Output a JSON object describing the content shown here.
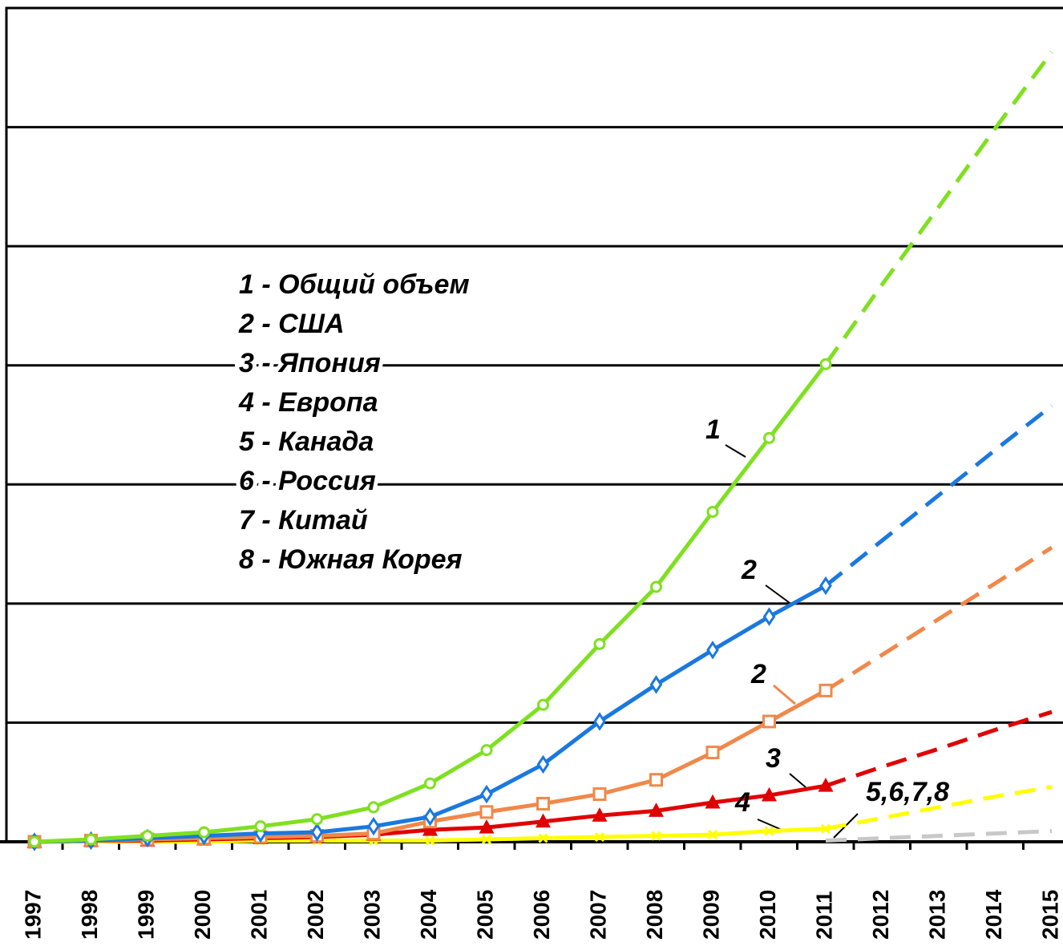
{
  "chart_data": {
    "type": "line",
    "categories": [
      "1997",
      "1998",
      "1999",
      "2000",
      "2001",
      "2002",
      "2003",
      "2004",
      "2005",
      "2006",
      "2007",
      "2008",
      "2009",
      "2010",
      "2011",
      "2012",
      "2013",
      "2014",
      "2015"
    ],
    "forecast_from": "2011",
    "ylim": [
      0,
      7
    ],
    "yticks": [
      1,
      2,
      3,
      4,
      5,
      6,
      7
    ],
    "grid": true,
    "legend": [
      "1 - Общий объем",
      "2 - США",
      "3 - Япония",
      "4 - Европа",
      "5 - Канада",
      "6 - Россия",
      "7 - Китай",
      "8 - Южная Корея"
    ],
    "annotations": [
      "1",
      "2",
      "2",
      "3",
      "4",
      "5,6,7,8"
    ],
    "series": [
      {
        "color": "#c8c8c8",
        "marker": "none",
        "values": [
          null,
          null,
          null,
          null,
          null,
          null,
          null,
          null,
          null,
          null,
          null,
          null,
          null,
          null,
          0.01,
          0.03,
          0.05,
          0.07,
          0.09
        ]
      },
      {
        "color": "#ffff00",
        "marker": "x",
        "values": [
          0,
          0,
          0,
          0,
          0.01,
          0.01,
          0.01,
          0.01,
          0.02,
          0.03,
          0.04,
          0.05,
          0.06,
          0.09,
          0.11,
          0.2,
          0.29,
          0.38,
          0.46
        ]
      },
      {
        "color": "#e00000",
        "marker": "triangle",
        "values": [
          0,
          0.01,
          0.01,
          0.02,
          0.03,
          0.04,
          0.06,
          0.1,
          0.12,
          0.17,
          0.22,
          0.26,
          0.33,
          0.39,
          0.47,
          0.63,
          0.78,
          0.94,
          1.09
        ]
      },
      {
        "color": "#f0884a",
        "marker": "square",
        "values": [
          0,
          0.01,
          0.02,
          0.03,
          0.04,
          0.05,
          0.07,
          0.17,
          0.25,
          0.32,
          0.4,
          0.52,
          0.75,
          1.01,
          1.27,
          1.57,
          1.87,
          2.17,
          2.47
        ]
      },
      {
        "color": "#1a78e0",
        "marker": "diamond",
        "values": [
          0,
          0.01,
          0.03,
          0.05,
          0.07,
          0.08,
          0.13,
          0.21,
          0.4,
          0.65,
          1.01,
          1.32,
          1.61,
          1.89,
          2.15,
          2.53,
          2.91,
          3.29,
          3.66
        ]
      },
      {
        "color": "#7fe020",
        "marker": "circle",
        "values": [
          0,
          0.02,
          0.05,
          0.08,
          0.13,
          0.19,
          0.29,
          0.49,
          0.77,
          1.15,
          1.66,
          2.14,
          2.77,
          3.39,
          4.01,
          4.68,
          5.33,
          5.99,
          6.63
        ]
      }
    ]
  }
}
